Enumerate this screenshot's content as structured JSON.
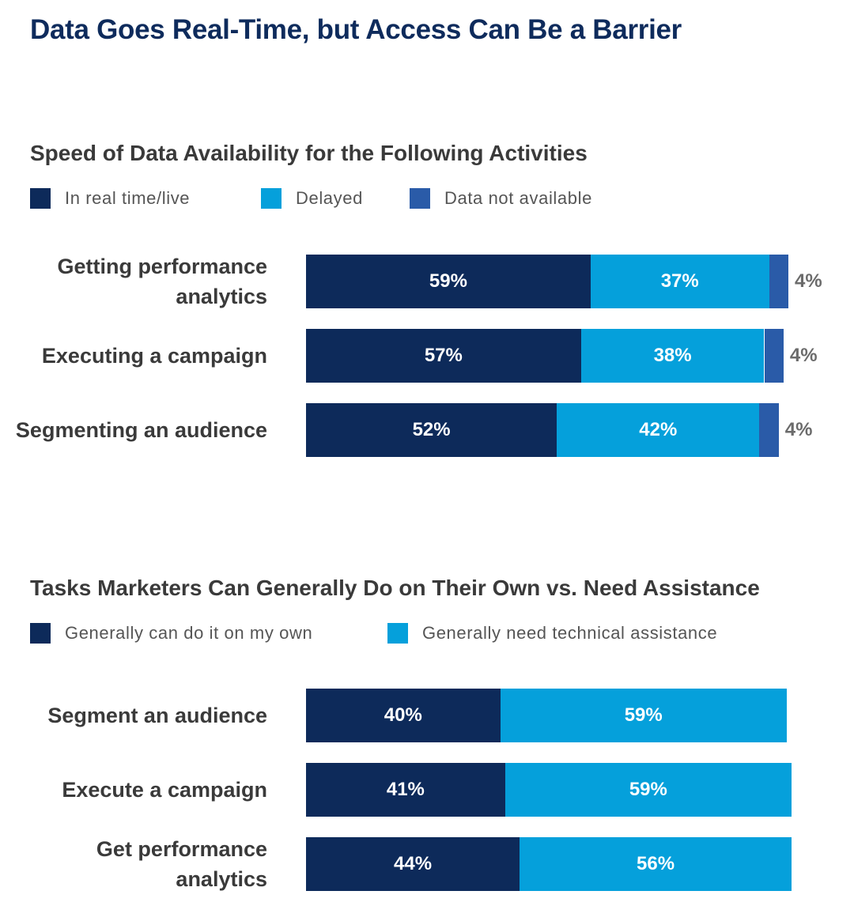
{
  "title": "Data Goes Real-Time, but Access Can Be a Barrier",
  "chart_data": [
    {
      "type": "bar",
      "orientation": "horizontal",
      "stacked": true,
      "title": "Speed of Data Availability for the Following Activities",
      "categories": [
        "Getting performance analytics",
        "Executing a campaign",
        "Segmenting an audience"
      ],
      "series": [
        {
          "name": "In real time/live",
          "color": "#0d2a5a",
          "values": [
            59,
            57,
            52
          ]
        },
        {
          "name": "Delayed",
          "color": "#05a0db",
          "values": [
            37,
            38,
            42
          ]
        },
        {
          "name": "Data not available",
          "color": "#2a5ba8",
          "values": [
            4,
            4,
            4
          ]
        }
      ],
      "value_suffix": "%",
      "legend_position": "top-left",
      "grid": false
    },
    {
      "type": "bar",
      "orientation": "horizontal",
      "stacked": true,
      "title": "Tasks Marketers Can Generally Do on Their Own vs. Need Assistance",
      "categories": [
        "Segment an audience",
        "Execute a campaign",
        "Get performance analytics"
      ],
      "series": [
        {
          "name": "Generally can do it on my own",
          "color": "#0d2a5a",
          "values": [
            40,
            41,
            44
          ]
        },
        {
          "name": "Generally need technical assistance",
          "color": "#05a0db",
          "values": [
            59,
            59,
            56
          ]
        }
      ],
      "value_suffix": "%",
      "legend_position": "top-left",
      "grid": false
    }
  ]
}
